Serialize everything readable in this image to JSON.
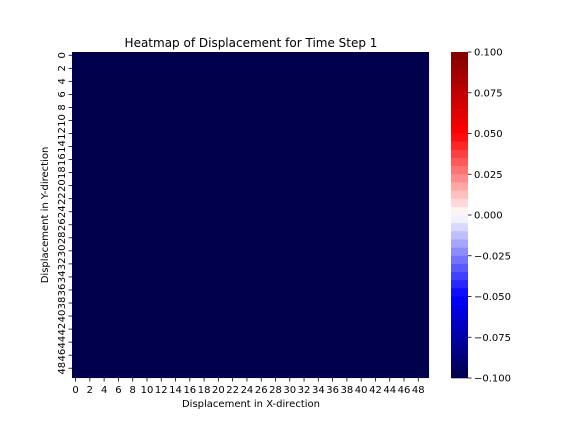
{
  "chart_data": {
    "type": "heatmap",
    "title": "Heatmap of Displacement for Time Step 1",
    "xlabel": "Displacement in X-direction",
    "ylabel": "Displacement in Y-direction",
    "rows": 50,
    "cols": 50,
    "fill_value": -0.1,
    "x_ticks": [
      "0",
      "2",
      "4",
      "6",
      "8",
      "10",
      "12",
      "14",
      "16",
      "18",
      "20",
      "22",
      "24",
      "26",
      "28",
      "30",
      "32",
      "34",
      "36",
      "38",
      "40",
      "42",
      "44",
      "46",
      "48"
    ],
    "y_ticks": [
      "0",
      "2",
      "4",
      "6",
      "8",
      "10",
      "12",
      "14",
      "16",
      "18",
      "20",
      "22",
      "24",
      "26",
      "28",
      "30",
      "32",
      "34",
      "36",
      "38",
      "40",
      "42",
      "44",
      "46",
      "48"
    ],
    "colorbar": {
      "colormap": "seismic (banded)",
      "vmin": -0.1,
      "vmax": 0.1,
      "ticks": [
        "0.100",
        "0.075",
        "0.050",
        "0.025",
        "0.000",
        "−0.025",
        "−0.050",
        "−0.075",
        "−0.100"
      ]
    },
    "colors": {
      "cell": "#00004c",
      "low": "#00004c",
      "mid": "#ffffff",
      "high": "#7f0000"
    }
  }
}
